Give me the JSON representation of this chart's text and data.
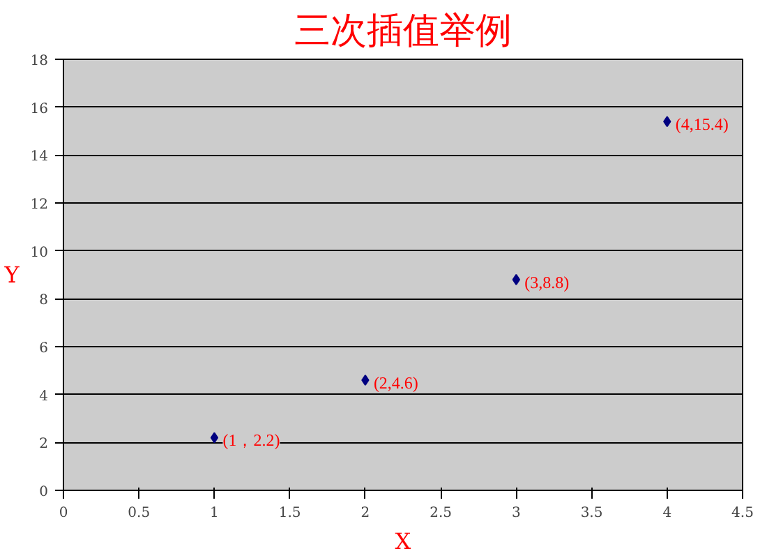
{
  "chart_data": {
    "type": "scatter",
    "title": "三次插值举例",
    "xlabel": "X",
    "ylabel": "Y",
    "x": [
      1,
      2,
      3,
      4
    ],
    "series": [
      {
        "color": "#000080",
        "values": [
          2.2,
          4.6,
          8.8,
          15.4
        ],
        "value_labels": [
          "(1，2.2)",
          "(2,4.6)",
          "(3,8.8)",
          "(4,15.4)"
        ]
      }
    ],
    "xlim": [
      0,
      4.5
    ],
    "xticks": [
      0,
      0.5,
      1,
      1.5,
      2,
      2.5,
      3,
      3.5,
      4,
      4.5
    ],
    "ylim": [
      0,
      18
    ],
    "yticks": [
      0,
      2,
      4,
      6,
      8,
      10,
      12,
      14,
      16,
      18
    ],
    "grid": "y",
    "marker": "diamond"
  }
}
